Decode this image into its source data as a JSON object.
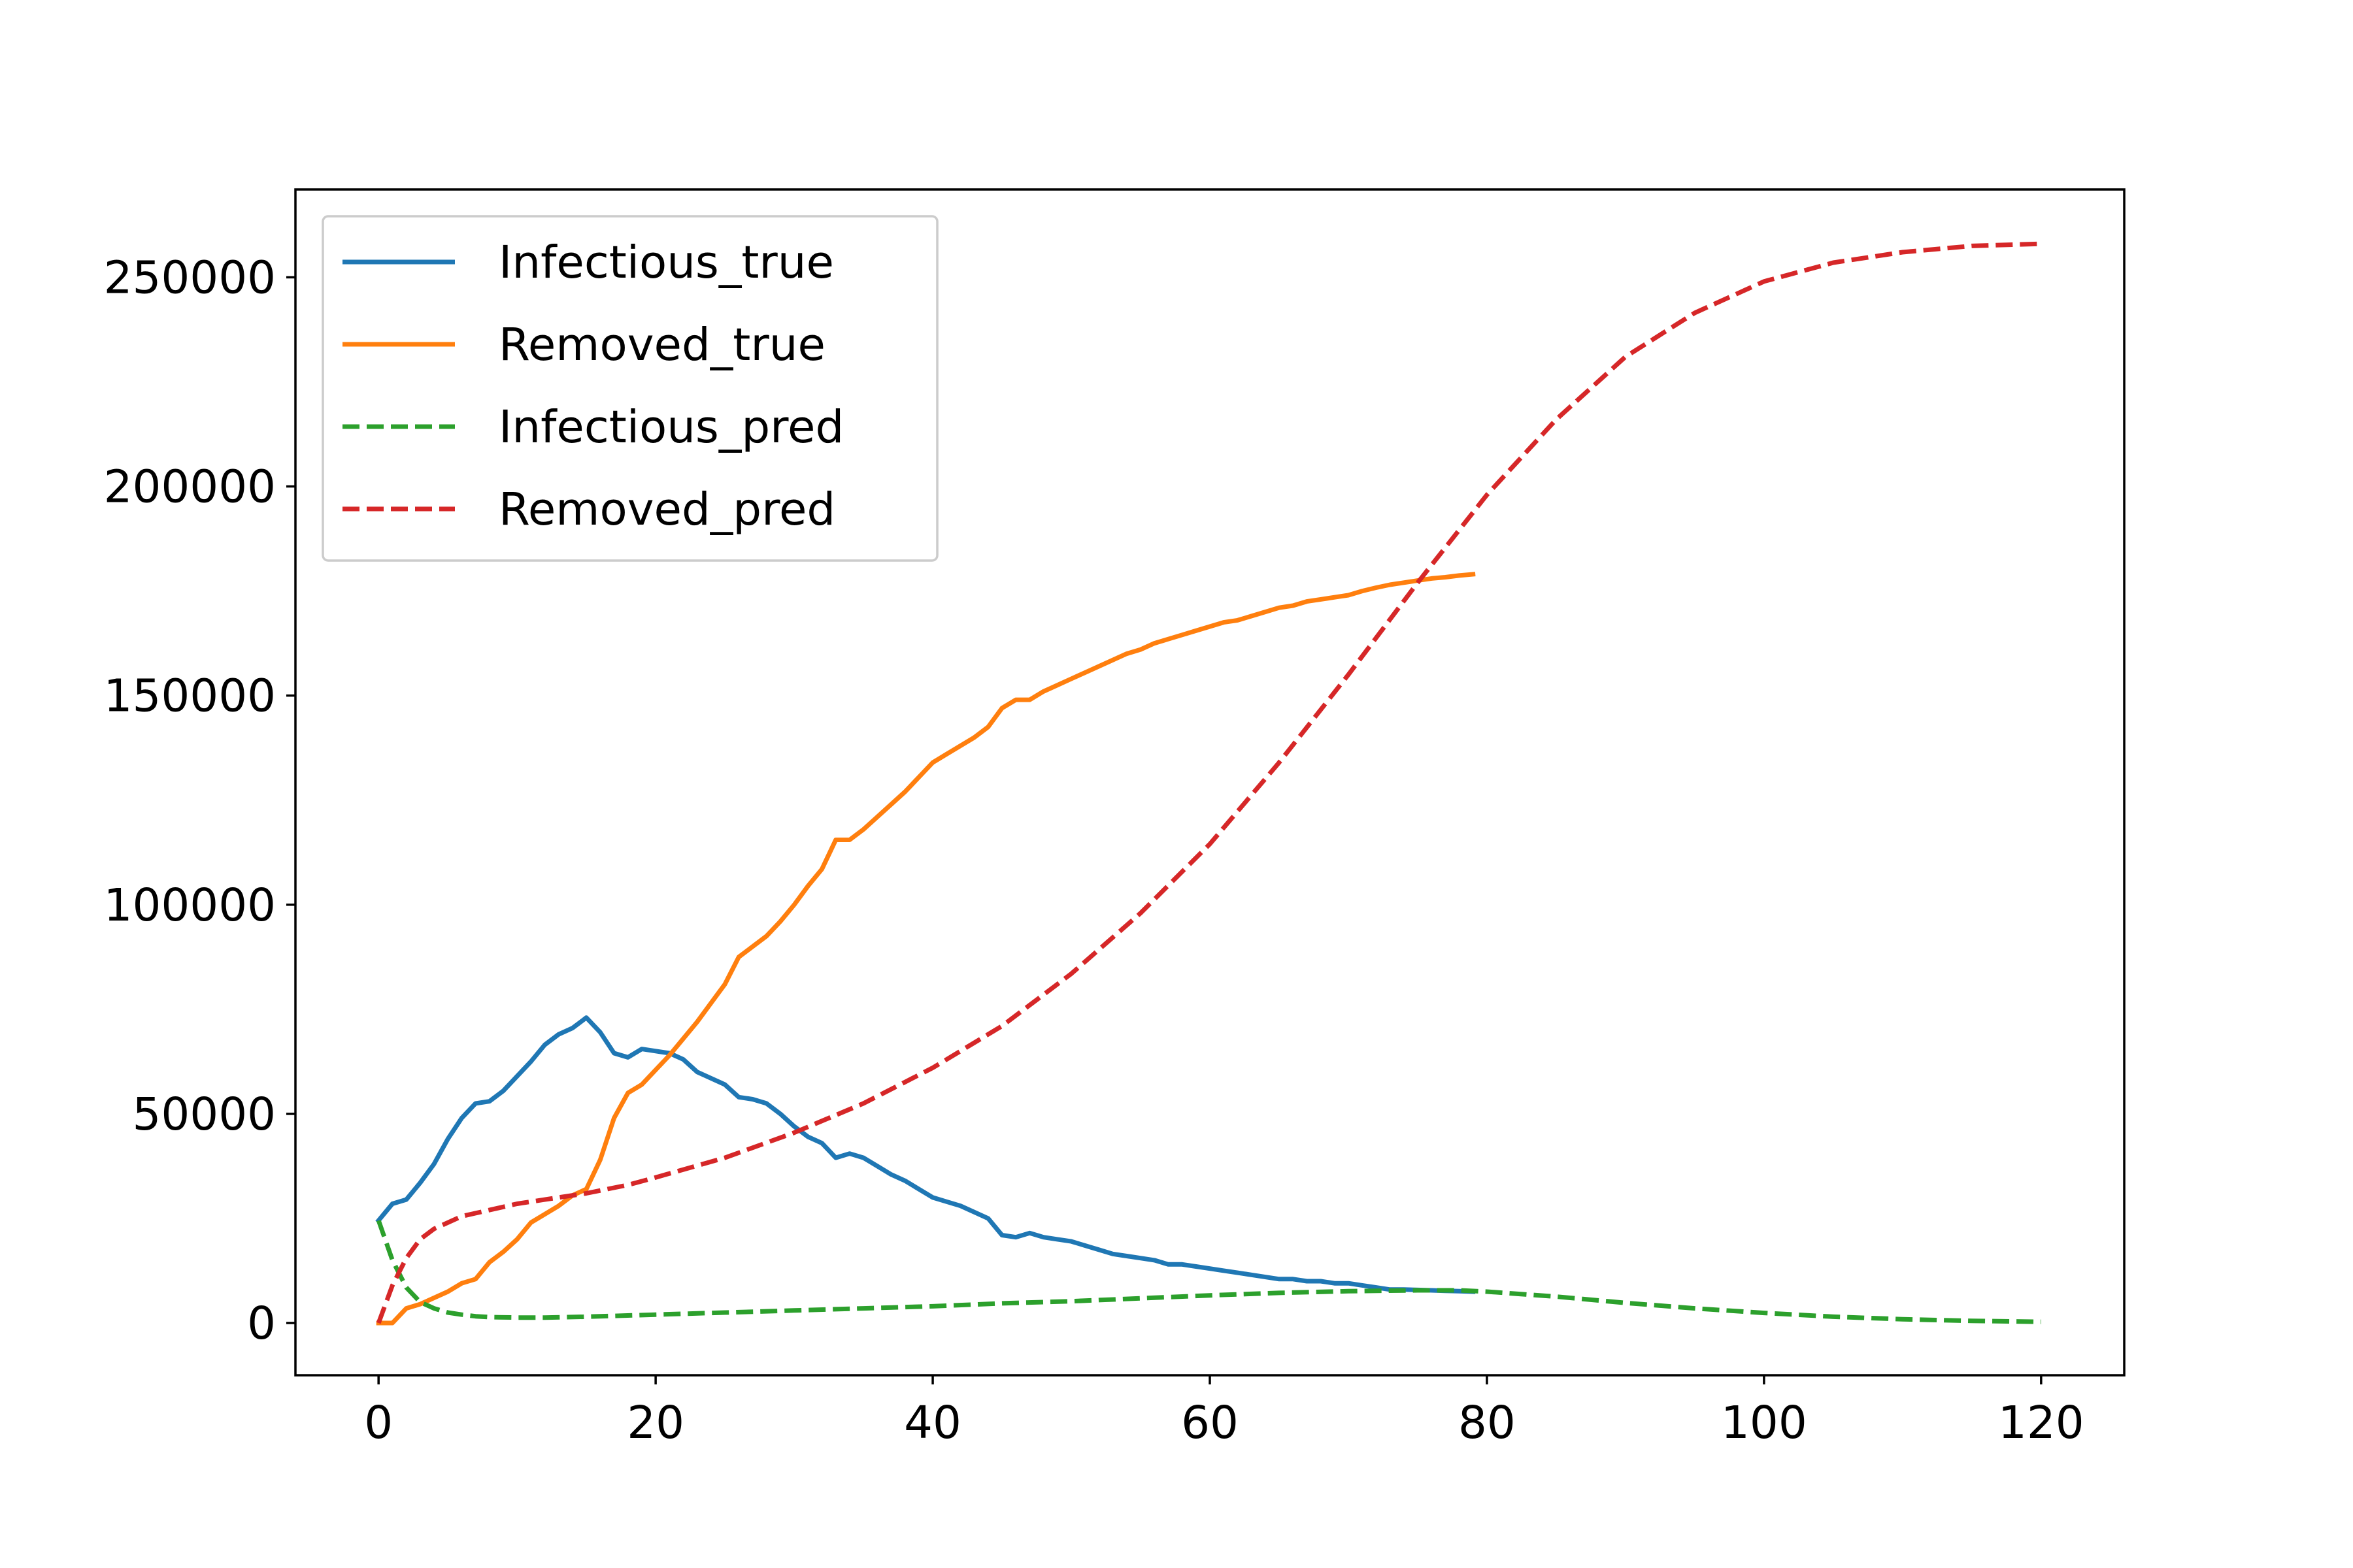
{
  "chart_data": {
    "type": "line",
    "title": "",
    "xlabel": "",
    "ylabel": "",
    "xlim": [
      -6,
      126
    ],
    "ylim": [
      -12500,
      271000
    ],
    "x_ticks": [
      0,
      20,
      40,
      60,
      80,
      100,
      120
    ],
    "y_ticks": [
      0,
      50000,
      100000,
      150000,
      200000,
      250000
    ],
    "x_tick_labels": [
      "0",
      "20",
      "40",
      "60",
      "80",
      "100",
      "120"
    ],
    "y_tick_labels": [
      "0",
      "50000",
      "100000",
      "150000",
      "200000",
      "250000"
    ],
    "grid": false,
    "legend_position": "top-left",
    "series": [
      {
        "name": "Infectious_true",
        "color": "#1f77b4",
        "style": "solid",
        "x": [
          0,
          1,
          2,
          3,
          4,
          5,
          6,
          7,
          8,
          9,
          10,
          11,
          12,
          13,
          14,
          15,
          16,
          17,
          18,
          19,
          20,
          21,
          22,
          23,
          24,
          25,
          26,
          27,
          28,
          29,
          30,
          31,
          32,
          33,
          34,
          35,
          36,
          37,
          38,
          39,
          40,
          41,
          42,
          43,
          44,
          45,
          46,
          47,
          48,
          49,
          50,
          51,
          52,
          53,
          54,
          55,
          56,
          57,
          58,
          59,
          60,
          61,
          62,
          63,
          64,
          65,
          66,
          67,
          68,
          69,
          70,
          71,
          72,
          73,
          74,
          75,
          76,
          77,
          78,
          79
        ],
        "y": [
          24500,
          28500,
          29500,
          33500,
          38000,
          44000,
          49000,
          52500,
          53000,
          55500,
          59000,
          62500,
          66500,
          69000,
          70500,
          73000,
          69500,
          64500,
          63500,
          65500,
          65000,
          64500,
          63000,
          60000,
          58500,
          57000,
          54000,
          53500,
          52500,
          50000,
          47000,
          44500,
          43000,
          39500,
          40500,
          39500,
          37500,
          35500,
          34000,
          32000,
          30000,
          29000,
          28000,
          26500,
          25000,
          21000,
          20500,
          21500,
          20500,
          20000,
          19500,
          18500,
          17500,
          16500,
          16000,
          15500,
          15000,
          14000,
          14000,
          13500,
          13000,
          12500,
          12000,
          11500,
          11000,
          10500,
          10500,
          10000,
          10000,
          9500,
          9500,
          9000,
          8500,
          8000,
          8000,
          7900,
          7800,
          7700,
          7600,
          7500
        ]
      },
      {
        "name": "Removed_true",
        "color": "#ff7f0e",
        "style": "solid",
        "x": [
          0,
          1,
          2,
          3,
          4,
          5,
          6,
          7,
          8,
          9,
          10,
          11,
          12,
          13,
          14,
          15,
          16,
          17,
          18,
          19,
          20,
          21,
          22,
          23,
          24,
          25,
          26,
          27,
          28,
          29,
          30,
          31,
          32,
          33,
          34,
          35,
          36,
          37,
          38,
          39,
          40,
          41,
          42,
          43,
          44,
          45,
          46,
          47,
          48,
          49,
          50,
          51,
          52,
          53,
          54,
          55,
          56,
          57,
          58,
          59,
          60,
          61,
          62,
          63,
          64,
          65,
          66,
          67,
          68,
          69,
          70,
          71,
          72,
          73,
          74,
          75,
          76,
          77,
          78,
          79
        ],
        "y": [
          0,
          0,
          3500,
          4500,
          6000,
          7500,
          9500,
          10500,
          14500,
          17000,
          20000,
          24000,
          26000,
          28000,
          30500,
          32000,
          39000,
          49000,
          55000,
          57000,
          60500,
          64000,
          68000,
          72000,
          76500,
          81000,
          87500,
          90000,
          92500,
          96000,
          100000,
          104500,
          108500,
          115500,
          115500,
          118000,
          121000,
          124000,
          127000,
          130500,
          134000,
          136000,
          138000,
          140000,
          142500,
          147000,
          149000,
          149000,
          151000,
          152500,
          154000,
          155500,
          157000,
          158500,
          160000,
          161000,
          162500,
          163500,
          164500,
          165500,
          166500,
          167500,
          168000,
          169000,
          170000,
          171000,
          171500,
          172500,
          173000,
          173500,
          174000,
          175000,
          175800,
          176500,
          177000,
          177500,
          178000,
          178300,
          178700,
          179000
        ]
      },
      {
        "name": "Infectious_pred",
        "color": "#2ca02c",
        "style": "dashed",
        "x": [
          0,
          1,
          2,
          3,
          4,
          5,
          6,
          7,
          8,
          10,
          12,
          15,
          20,
          25,
          30,
          35,
          40,
          45,
          50,
          55,
          60,
          65,
          70,
          75,
          78,
          80,
          85,
          90,
          95,
          100,
          105,
          110,
          115,
          120
        ],
        "y": [
          24500,
          15000,
          8500,
          5000,
          3500,
          2500,
          2000,
          1600,
          1400,
          1300,
          1300,
          1500,
          2000,
          2500,
          3000,
          3500,
          4000,
          4700,
          5200,
          5900,
          6600,
          7200,
          7600,
          7800,
          7800,
          7500,
          6300,
          4800,
          3500,
          2400,
          1500,
          900,
          500,
          300
        ]
      },
      {
        "name": "Removed_pred",
        "color": "#d62728",
        "style": "dashed",
        "x": [
          0,
          1,
          2,
          3,
          4,
          5,
          6,
          8,
          10,
          12,
          15,
          18,
          20,
          25,
          30,
          35,
          40,
          45,
          50,
          55,
          60,
          65,
          70,
          75,
          80,
          85,
          90,
          95,
          100,
          105,
          110,
          115,
          120
        ],
        "y": [
          0,
          9000,
          15500,
          20000,
          22500,
          24000,
          25500,
          27000,
          28500,
          29500,
          31000,
          33000,
          34800,
          39500,
          45500,
          52500,
          61000,
          71000,
          83500,
          98000,
          114500,
          134000,
          155000,
          177000,
          198000,
          216000,
          231000,
          241500,
          249000,
          253500,
          256000,
          257500,
          258000
        ]
      }
    ]
  }
}
